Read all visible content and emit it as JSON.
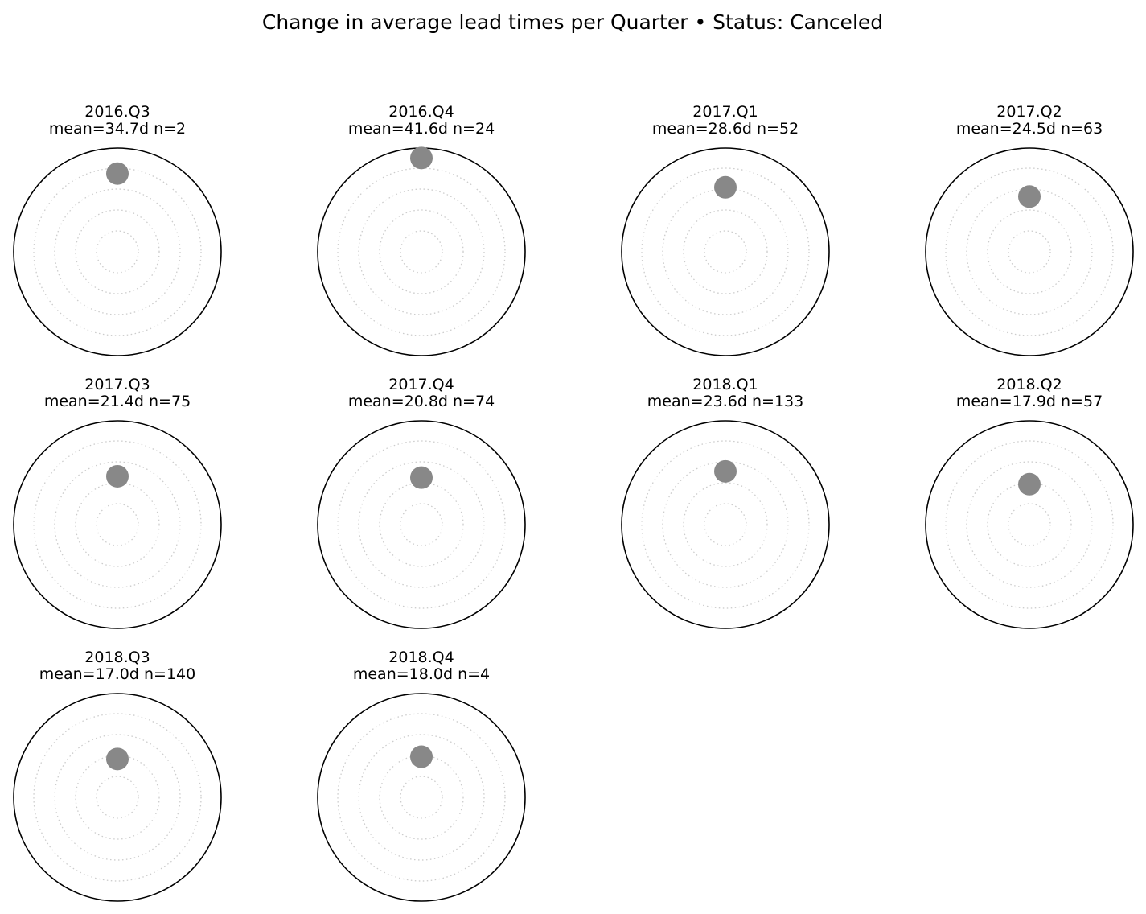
{
  "chart_data": {
    "type": "scatter",
    "projection": "polar",
    "title": "Change in average lead times per Quarter  •  Status: Canceled",
    "grid": true,
    "point_color": "#888888",
    "grid_color": "#cccccc",
    "r_max": 46,
    "panels": [
      {
        "quarter": "2016.Q3",
        "subtitle": "mean=34.7d  n=2",
        "mean": 34.7,
        "n": 2
      },
      {
        "quarter": "2016.Q4",
        "subtitle": "mean=41.6d  n=24",
        "mean": 41.6,
        "n": 24
      },
      {
        "quarter": "2017.Q1",
        "subtitle": "mean=28.6d  n=52",
        "mean": 28.6,
        "n": 52
      },
      {
        "quarter": "2017.Q2",
        "subtitle": "mean=24.5d  n=63",
        "mean": 24.5,
        "n": 63
      },
      {
        "quarter": "2017.Q3",
        "subtitle": "mean=21.4d  n=75",
        "mean": 21.4,
        "n": 75
      },
      {
        "quarter": "2017.Q4",
        "subtitle": "mean=20.8d  n=74",
        "mean": 20.8,
        "n": 74
      },
      {
        "quarter": "2018.Q1",
        "subtitle": "mean=23.6d  n=133",
        "mean": 23.6,
        "n": 133
      },
      {
        "quarter": "2018.Q2",
        "subtitle": "mean=17.9d  n=57",
        "mean": 17.9,
        "n": 57
      },
      {
        "quarter": "2018.Q3",
        "subtitle": "mean=17.0d  n=140",
        "mean": 17.0,
        "n": 140
      },
      {
        "quarter": "2018.Q4",
        "subtitle": "mean=18.0d  n=4",
        "mean": 18.0,
        "n": 4
      }
    ]
  }
}
